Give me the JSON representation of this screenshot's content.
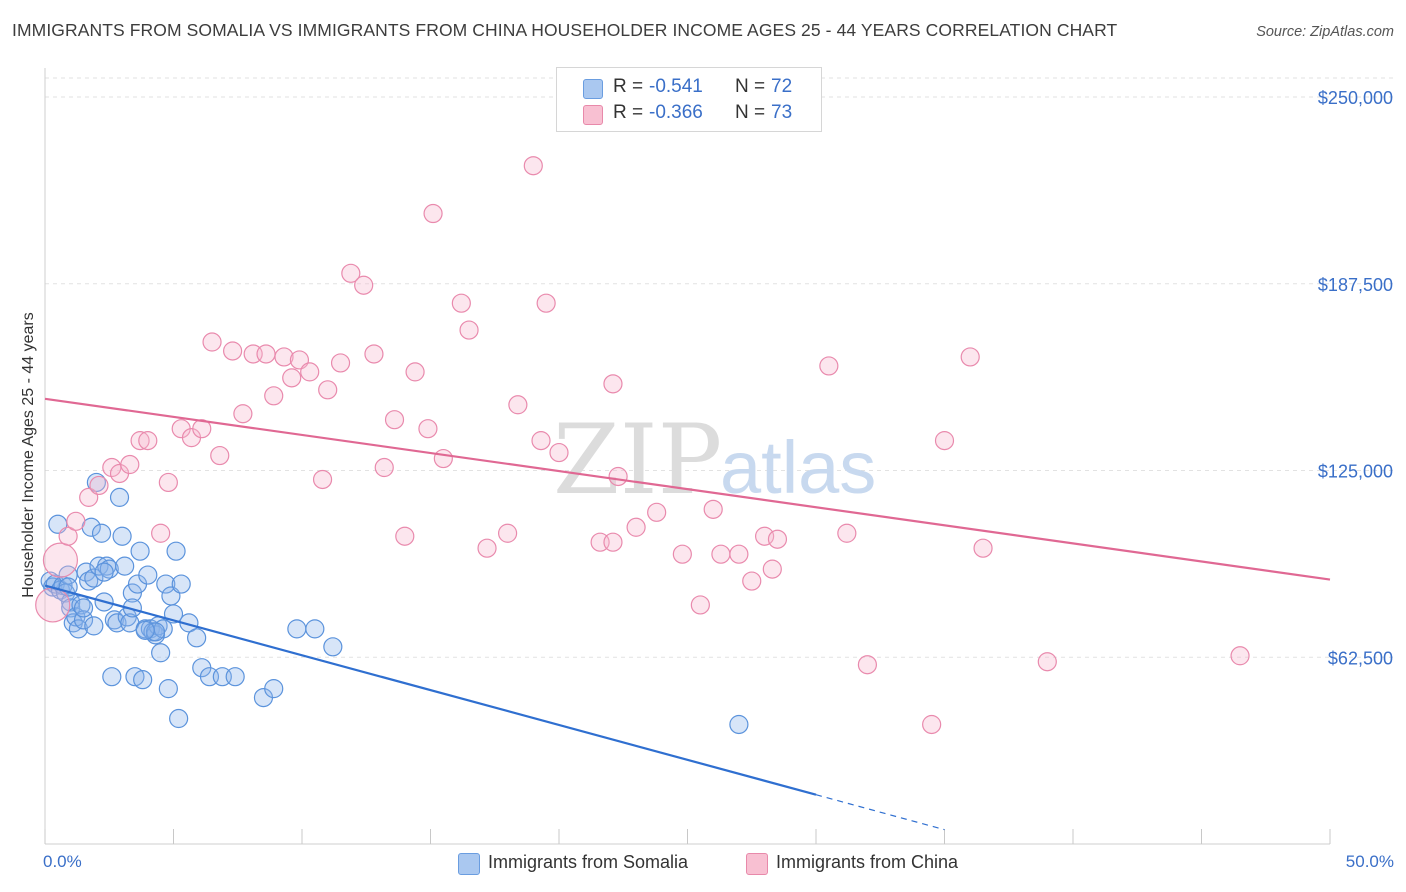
{
  "title": "IMMIGRANTS FROM SOMALIA VS IMMIGRANTS FROM CHINA HOUSEHOLDER INCOME AGES 25 - 44 YEARS CORRELATION CHART",
  "source": "Source: ZipAtlas.com",
  "watermark": {
    "zip": "ZIP",
    "atlas": "atlas"
  },
  "legend": {
    "rows": [
      {
        "r_label": "R =",
        "r_value": "-0.541",
        "n_label": "N =",
        "n_value": "72",
        "color": "#aac8f0",
        "border": "#6a9de0"
      },
      {
        "r_label": "R =",
        "r_value": "-0.366",
        "n_label": "N =",
        "n_value": "73",
        "color": "#f8c0d2",
        "border": "#e889aa"
      }
    ]
  },
  "bottom_legend": [
    "Immigrants from Somalia",
    "Immigrants from China"
  ],
  "chart_data": {
    "type": "scatter",
    "title": "IMMIGRANTS FROM SOMALIA VS IMMIGRANTS FROM CHINA HOUSEHOLDER INCOME AGES 25 - 44 YEARS CORRELATION CHART",
    "xlabel": "",
    "ylabel": "Householder Income Ages 25 - 44 years",
    "xlim": [
      0,
      50
    ],
    "ylim": [
      0,
      262500
    ],
    "x_tick_labels": [
      "0.0%",
      "50.0%"
    ],
    "y_ticks": [
      62500,
      125000,
      187500,
      250000
    ],
    "y_tick_labels": [
      "$62,500",
      "$125,000",
      "$187,500",
      "$250,000"
    ],
    "grid": true,
    "legend_position": "top-center",
    "series": [
      {
        "name": "Immigrants from Somalia",
        "color": "#5b93dc",
        "fill": "rgba(140,180,235,0.35)",
        "line_color": "#2f6fd0",
        "trend": {
          "x0": 0,
          "y0": 86500,
          "x1": 30,
          "y1": 16500,
          "dash_to_x": 35,
          "dash_to_y": 4800
        },
        "points": [
          [
            0.2,
            88000
          ],
          [
            0.3,
            86000
          ],
          [
            0.4,
            87000
          ],
          [
            0.5,
            107000
          ],
          [
            0.6,
            85000
          ],
          [
            0.7,
            86500
          ],
          [
            0.8,
            84000
          ],
          [
            0.9,
            90000
          ],
          [
            1.0,
            81000
          ],
          [
            1.0,
            79000
          ],
          [
            1.1,
            74000
          ],
          [
            1.2,
            76000
          ],
          [
            1.3,
            72000
          ],
          [
            1.4,
            80000
          ],
          [
            1.5,
            75000
          ],
          [
            1.6,
            91000
          ],
          [
            1.7,
            88000
          ],
          [
            1.8,
            106000
          ],
          [
            1.9,
            89000
          ],
          [
            1.9,
            73000
          ],
          [
            2.0,
            121000
          ],
          [
            2.1,
            93000
          ],
          [
            2.2,
            104000
          ],
          [
            2.3,
            81000
          ],
          [
            2.4,
            93000
          ],
          [
            2.5,
            92000
          ],
          [
            2.6,
            56000
          ],
          [
            2.7,
            75000
          ],
          [
            2.8,
            74000
          ],
          [
            2.9,
            116000
          ],
          [
            3.0,
            103000
          ],
          [
            3.1,
            93000
          ],
          [
            3.2,
            76000
          ],
          [
            3.3,
            74000
          ],
          [
            3.4,
            84000
          ],
          [
            3.5,
            56000
          ],
          [
            3.6,
            87000
          ],
          [
            3.7,
            98000
          ],
          [
            3.8,
            55000
          ],
          [
            3.9,
            72000
          ],
          [
            4.0,
            90000
          ],
          [
            4.1,
            72000
          ],
          [
            4.2,
            71000
          ],
          [
            4.3,
            70000
          ],
          [
            4.4,
            73000
          ],
          [
            4.5,
            64000
          ],
          [
            4.6,
            72000
          ],
          [
            4.7,
            87000
          ],
          [
            4.8,
            52000
          ],
          [
            4.9,
            83000
          ],
          [
            5.0,
            77000
          ],
          [
            5.1,
            98000
          ],
          [
            5.2,
            42000
          ],
          [
            5.3,
            87000
          ],
          [
            5.6,
            74000
          ],
          [
            5.9,
            69000
          ],
          [
            6.1,
            59000
          ],
          [
            6.4,
            56000
          ],
          [
            6.9,
            56000
          ],
          [
            7.4,
            56000
          ],
          [
            8.5,
            49000
          ],
          [
            8.9,
            52000
          ],
          [
            9.8,
            72000
          ],
          [
            10.5,
            72000
          ],
          [
            11.2,
            66000
          ],
          [
            27.0,
            40000
          ],
          [
            3.4,
            79000
          ],
          [
            2.3,
            91000
          ],
          [
            1.5,
            79000
          ],
          [
            0.9,
            86000
          ],
          [
            4.3,
            71000
          ],
          [
            3.9,
            71500
          ]
        ]
      },
      {
        "name": "Immigrants from China",
        "color": "#e98aad",
        "fill": "rgba(246,182,205,0.35)",
        "line_color": "#e06893",
        "trend": {
          "x0": 0,
          "y0": 149000,
          "x1": 50,
          "y1": 88500
        },
        "points": [
          [
            0.3,
            80000
          ],
          [
            0.6,
            95000
          ],
          [
            0.9,
            103000
          ],
          [
            1.2,
            108000
          ],
          [
            1.7,
            116000
          ],
          [
            2.1,
            120000
          ],
          [
            2.6,
            126000
          ],
          [
            2.9,
            124000
          ],
          [
            3.3,
            127000
          ],
          [
            3.7,
            135000
          ],
          [
            4.0,
            135000
          ],
          [
            4.5,
            104000
          ],
          [
            4.8,
            121000
          ],
          [
            5.3,
            139000
          ],
          [
            5.7,
            136000
          ],
          [
            6.1,
            139000
          ],
          [
            6.5,
            168000
          ],
          [
            6.8,
            130000
          ],
          [
            7.3,
            165000
          ],
          [
            7.7,
            144000
          ],
          [
            8.1,
            164000
          ],
          [
            8.6,
            164000
          ],
          [
            8.9,
            150000
          ],
          [
            9.3,
            163000
          ],
          [
            9.6,
            156000
          ],
          [
            9.9,
            162000
          ],
          [
            10.3,
            158000
          ],
          [
            10.8,
            122000
          ],
          [
            11.0,
            152000
          ],
          [
            11.5,
            161000
          ],
          [
            11.9,
            191000
          ],
          [
            12.4,
            187000
          ],
          [
            12.8,
            164000
          ],
          [
            13.2,
            126000
          ],
          [
            13.6,
            142000
          ],
          [
            14.0,
            103000
          ],
          [
            14.4,
            158000
          ],
          [
            14.9,
            139000
          ],
          [
            15.1,
            211000
          ],
          [
            15.5,
            129000
          ],
          [
            16.2,
            181000
          ],
          [
            16.5,
            172000
          ],
          [
            17.2,
            99000
          ],
          [
            18.0,
            104000
          ],
          [
            18.4,
            147000
          ],
          [
            19.0,
            227000
          ],
          [
            19.3,
            135000
          ],
          [
            19.5,
            181000
          ],
          [
            20.0,
            131000
          ],
          [
            21.6,
            101000
          ],
          [
            22.1,
            154000
          ],
          [
            22.3,
            123000
          ],
          [
            22.1,
            101000
          ],
          [
            23.0,
            106000
          ],
          [
            23.8,
            111000
          ],
          [
            24.8,
            97000
          ],
          [
            25.5,
            80000
          ],
          [
            26.0,
            112000
          ],
          [
            26.3,
            97000
          ],
          [
            27.0,
            97000
          ],
          [
            27.5,
            88000
          ],
          [
            28.0,
            103000
          ],
          [
            28.3,
            92000
          ],
          [
            28.5,
            102000
          ],
          [
            30.5,
            160000
          ],
          [
            31.2,
            104000
          ],
          [
            32.0,
            60000
          ],
          [
            34.5,
            40000
          ],
          [
            35.0,
            135000
          ],
          [
            36.0,
            163000
          ],
          [
            36.5,
            99000
          ],
          [
            39.0,
            61000
          ],
          [
            46.5,
            63000
          ]
        ]
      }
    ]
  }
}
